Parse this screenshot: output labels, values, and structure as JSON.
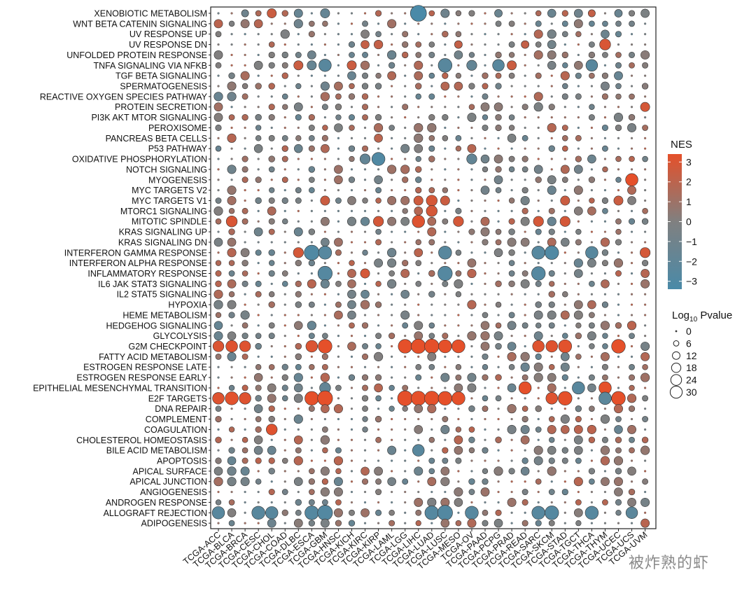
{
  "chart_data": {
    "type": "bubble-heatmap",
    "xlabel": "",
    "ylabel": "",
    "x_categories": [
      "TCGA-ACC",
      "TCGA-BLCA",
      "TCGA-BRCA",
      "TCGA-CESC",
      "TCGA-CHOL",
      "TCGA-COAD",
      "TCGA-DLBC",
      "TCGA-ESCA",
      "TCGA-GBM",
      "TCGA-HNSC",
      "TCGA-KICH",
      "TCGA-KIRC",
      "TCGA-KIRP",
      "TCGA-LAML",
      "TCGA-LGG",
      "TCGA-LIHC",
      "TCGA-LUAD",
      "TCGA-LUSC",
      "TCGA-MESO",
      "TCGA-OV",
      "TCGA-PAAD",
      "TCGA-PCPG",
      "TCGA-PRAD",
      "TCGA-READ",
      "TCGA-SARC",
      "TCGA-SKCM",
      "TCGA-STAD",
      "TCGA-TGCT",
      "TCGA-THCA",
      "TCGA-THYM",
      "TCGA-UCEC",
      "TCGA-UCS",
      "TCGA-UVM"
    ],
    "y_categories": [
      "XENOBIOTIC METABOLISM",
      "WNT BETA CATENIN SIGNALING",
      "UV RESPONSE UP",
      "UV RESPONSE DN",
      "UNFOLDED PROTEIN RESPONSE",
      "TNFA SIGNALING VIA NFKB",
      "TGF BETA SIGNALING",
      "SPERMATOGENESIS",
      "REACTIVE OXYGEN SPECIES PATHWAY",
      "PROTEIN SECRETION",
      "PI3K AKT MTOR SIGNALING",
      "PEROXISOME",
      "PANCREAS BETA CELLS",
      "P53 PATHWAY",
      "OXIDATIVE PHOSPHORYLATION",
      "NOTCH SIGNALING",
      "MYOGENESIS",
      "MYC TARGETS V2",
      "MYC TARGETS V1",
      "MTORC1 SIGNALING",
      "MITOTIC SPINDLE",
      "KRAS SIGNALING UP",
      "KRAS SIGNALING DN",
      "INTERFERON GAMMA RESPONSE",
      "INTERFERON ALPHA RESPONSE",
      "INFLAMMATORY RESPONSE",
      "IL6 JAK STAT3 SIGNALING",
      "IL2 STAT5 SIGNALING",
      "HYPOXIA",
      "HEME METABOLISM",
      "HEDGEHOG SIGNALING",
      "GLYCOLYSIS",
      "G2M CHECKPOINT",
      "FATTY ACID METABOLISM",
      "ESTROGEN RESPONSE LATE",
      "ESTROGEN RESPONSE EARLY",
      "EPITHELIAL MESENCHYMAL TRANSITION",
      "E2F TARGETS",
      "DNA REPAIR",
      "COMPLEMENT",
      "COAGULATION",
      "CHOLESTEROL HOMEOSTASIS",
      "BILE ACID METABOLISM",
      "APOPTOSIS",
      "APICAL SURFACE",
      "APICAL JUNCTION",
      "ANGIOGENESIS",
      "ANDROGEN RESPONSE",
      "ALLOGRAFT REJECTION",
      "ADIPOGENESIS"
    ],
    "color_legend": {
      "title": "NES",
      "ticks": [
        3,
        2,
        1,
        0,
        -1,
        -2,
        -3
      ],
      "range": [
        -3.4,
        3.4
      ],
      "colors": [
        "#4a8aa8",
        "#808080",
        "#e5502a"
      ]
    },
    "size_legend": {
      "title_main": "Log",
      "title_sub": "10",
      "title_rest": " Pvalue",
      "ticks": [
        0,
        6,
        12,
        18,
        24,
        30
      ]
    },
    "size_scale": {
      "max_value": 30
    },
    "colors": {
      "positive": "#e5502a",
      "neutral": "#808080",
      "negative": "#4a8aa8",
      "stroke": "#333333"
    },
    "points": [
      {
        "y": "XENOBIOTIC METABOLISM",
        "x": "TCGA-CHOL",
        "nes": 2.2,
        "p": 10
      },
      {
        "y": "XENOBIOTIC METABOLISM",
        "x": "TCGA-GBM",
        "nes": -1.5,
        "p": 10
      },
      {
        "y": "XENOBIOTIC METABOLISM",
        "x": "TCGA-LIHC",
        "nes": -3.0,
        "p": 30
      },
      {
        "y": "XENOBIOTIC METABOLISM",
        "x": "TCGA-BRCA",
        "nes": -1,
        "p": 6
      },
      {
        "y": "XENOBIOTIC METABOLISM",
        "x": "TCGA-PCPG",
        "nes": -1.2,
        "p": 7
      },
      {
        "y": "XENOBIOTIC METABOLISM",
        "x": "TCGA-SKCM",
        "nes": -1.2,
        "p": 8
      },
      {
        "y": "XENOBIOTIC METABOLISM",
        "x": "TCGA-UCEC",
        "nes": -1.3,
        "p": 7
      },
      {
        "y": "XENOBIOTIC METABOLISM",
        "x": "TCGA-THCA",
        "nes": 2.0,
        "p": 6
      },
      {
        "y": "UV RESPONSE DN",
        "x": "TCGA-KIRC",
        "nes": 2.0,
        "p": 8
      },
      {
        "y": "UV RESPONSE DN",
        "x": "TCGA-KIRP",
        "nes": 2.0,
        "p": 9
      },
      {
        "y": "UV RESPONSE DN",
        "x": "TCGA-THYM",
        "nes": 2.6,
        "p": 14
      },
      {
        "y": "UV RESPONSE DN",
        "x": "TCGA-READ",
        "nes": 2.0,
        "p": 7
      },
      {
        "y": "UV RESPONSE DN",
        "x": "TCGA-MESO",
        "nes": 2.0,
        "p": 7
      },
      {
        "y": "TNFA SIGNALING VIA NFKB",
        "x": "TCGA-GBM",
        "nes": -2.2,
        "p": 18
      },
      {
        "y": "TNFA SIGNALING VIA NFKB",
        "x": "TCGA-LUSC",
        "nes": -2.2,
        "p": 22
      },
      {
        "y": "TNFA SIGNALING VIA NFKB",
        "x": "TCGA-PCPG",
        "nes": -2.2,
        "p": 16
      },
      {
        "y": "TNFA SIGNALING VIA NFKB",
        "x": "TCGA-THCA",
        "nes": -2.2,
        "p": 16
      },
      {
        "y": "TNFA SIGNALING VIA NFKB",
        "x": "TCGA-DLBC",
        "nes": 2.2,
        "p": 10
      },
      {
        "y": "TNFA SIGNALING VIA NFKB",
        "x": "TCGA-KICH",
        "nes": 2.2,
        "p": 10
      },
      {
        "y": "TNFA SIGNALING VIA NFKB",
        "x": "TCGA-PRAD",
        "nes": 2.2,
        "p": 10
      },
      {
        "y": "TNFA SIGNALING VIA NFKB",
        "x": "TCGA-ESCA",
        "nes": -1.4,
        "p": 10
      },
      {
        "y": "TNFA SIGNALING VIA NFKB",
        "x": "TCGA-OV",
        "nes": -1.6,
        "p": 12
      },
      {
        "y": "PROTEIN SECRETION",
        "x": "TCGA-UVM",
        "nes": 2.5,
        "p": 10
      },
      {
        "y": "OXIDATIVE PHOSPHORYLATION",
        "x": "TCGA-KIRP",
        "nes": -2.6,
        "p": 20
      },
      {
        "y": "OXIDATIVE PHOSPHORYLATION",
        "x": "TCGA-KIRC",
        "nes": -1.6,
        "p": 12
      },
      {
        "y": "OXIDATIVE PHOSPHORYLATION",
        "x": "TCGA-OV",
        "nes": -1.6,
        "p": 12
      },
      {
        "y": "MYOGENESIS",
        "x": "TCGA-UCS",
        "nes": 3.0,
        "p": 18
      },
      {
        "y": "MYC TARGETS V1",
        "x": "TCGA-LUAD",
        "nes": 2.5,
        "p": 14
      },
      {
        "y": "MYC TARGETS V1",
        "x": "TCGA-LIHC",
        "nes": 2.3,
        "p": 10
      },
      {
        "y": "MYC TARGETS V1",
        "x": "TCGA-GBM",
        "nes": 2.2,
        "p": 10
      },
      {
        "y": "MYC TARGETS V1",
        "x": "TCGA-LUSC",
        "nes": 2.2,
        "p": 10
      },
      {
        "y": "MYC TARGETS V1",
        "x": "TCGA-STAD",
        "nes": 2.2,
        "p": 10
      },
      {
        "y": "MYC TARGETS V1",
        "x": "TCGA-UCEC",
        "nes": 2.2,
        "p": 10
      },
      {
        "y": "MTORC1 SIGNALING",
        "x": "TCGA-LUAD",
        "nes": 2.5,
        "p": 14
      },
      {
        "y": "MITOTIC SPINDLE",
        "x": "TCGA-BLCA",
        "nes": 2.6,
        "p": 14
      },
      {
        "y": "MITOTIC SPINDLE",
        "x": "TCGA-LIHC",
        "nes": 2.8,
        "p": 18
      },
      {
        "y": "MITOTIC SPINDLE",
        "x": "TCGA-KIRP",
        "nes": 2.5,
        "p": 12
      },
      {
        "y": "MITOTIC SPINDLE",
        "x": "TCGA-MESO",
        "nes": 2.5,
        "p": 12
      },
      {
        "y": "MITOTIC SPINDLE",
        "x": "TCGA-STAD",
        "nes": 2.5,
        "p": 12
      },
      {
        "y": "MITOTIC SPINDLE",
        "x": "TCGA-SARC",
        "nes": 2.5,
        "p": 12
      },
      {
        "y": "INTERFERON GAMMA RESPONSE",
        "x": "TCGA-ESCA",
        "nes": -2.6,
        "p": 26
      },
      {
        "y": "INTERFERON GAMMA RESPONSE",
        "x": "TCGA-GBM",
        "nes": -2.3,
        "p": 20
      },
      {
        "y": "INTERFERON GAMMA RESPONSE",
        "x": "TCGA-SARC",
        "nes": -2.3,
        "p": 20
      },
      {
        "y": "INTERFERON GAMMA RESPONSE",
        "x": "TCGA-SKCM",
        "nes": -2.6,
        "p": 22
      },
      {
        "y": "INTERFERON GAMMA RESPONSE",
        "x": "TCGA-LUSC",
        "nes": -2.2,
        "p": 20
      },
      {
        "y": "INTERFERON GAMMA RESPONSE",
        "x": "TCGA-THCA",
        "nes": -2.2,
        "p": 18
      },
      {
        "y": "INTERFERON GAMMA RESPONSE",
        "x": "TCGA-DLBC",
        "nes": 2.5,
        "p": 12
      },
      {
        "y": "INTERFERON GAMMA RESPONSE",
        "x": "TCGA-UVM",
        "nes": 2.5,
        "p": 12
      },
      {
        "y": "INFLAMMATORY RESPONSE",
        "x": "TCGA-GBM",
        "nes": -2.4,
        "p": 24
      },
      {
        "y": "INFLAMMATORY RESPONSE",
        "x": "TCGA-LUSC",
        "nes": -2.4,
        "p": 24
      },
      {
        "y": "INFLAMMATORY RESPONSE",
        "x": "TCGA-SARC",
        "nes": -2.4,
        "p": 22
      },
      {
        "y": "INFLAMMATORY RESPONSE",
        "x": "TCGA-KIRC",
        "nes": 2.5,
        "p": 10
      },
      {
        "y": "G2M CHECKPOINT",
        "x": "TCGA-ACC",
        "nes": 2.7,
        "p": 14
      },
      {
        "y": "G2M CHECKPOINT",
        "x": "TCGA-BLCA",
        "nes": 2.8,
        "p": 16
      },
      {
        "y": "G2M CHECKPOINT",
        "x": "TCGA-BRCA",
        "nes": 2.8,
        "p": 14
      },
      {
        "y": "G2M CHECKPOINT",
        "x": "TCGA-ESCA",
        "nes": 2.7,
        "p": 16
      },
      {
        "y": "G2M CHECKPOINT",
        "x": "TCGA-GBM",
        "nes": 3.0,
        "p": 22
      },
      {
        "y": "G2M CHECKPOINT",
        "x": "TCGA-LGG",
        "nes": 3.0,
        "p": 22
      },
      {
        "y": "G2M CHECKPOINT",
        "x": "TCGA-LIHC",
        "nes": 3.0,
        "p": 24
      },
      {
        "y": "G2M CHECKPOINT",
        "x": "TCGA-LUAD",
        "nes": 3.0,
        "p": 24
      },
      {
        "y": "G2M CHECKPOINT",
        "x": "TCGA-LUSC",
        "nes": 3.0,
        "p": 20
      },
      {
        "y": "G2M CHECKPOINT",
        "x": "TCGA-MESO",
        "nes": 3.0,
        "p": 20
      },
      {
        "y": "G2M CHECKPOINT",
        "x": "TCGA-SARC",
        "nes": 2.8,
        "p": 16
      },
      {
        "y": "G2M CHECKPOINT",
        "x": "TCGA-SKCM",
        "nes": 2.8,
        "p": 16
      },
      {
        "y": "G2M CHECKPOINT",
        "x": "TCGA-STAD",
        "nes": 2.9,
        "p": 20
      },
      {
        "y": "G2M CHECKPOINT",
        "x": "TCGA-UCEC",
        "nes": 3.0,
        "p": 22
      },
      {
        "y": "EPITHELIAL MESENCHYMAL TRANSITION",
        "x": "TCGA-READ",
        "nes": 3.0,
        "p": 18
      },
      {
        "y": "EPITHELIAL MESENCHYMAL TRANSITION",
        "x": "TCGA-THYM",
        "nes": 3.0,
        "p": 18
      },
      {
        "y": "EPITHELIAL MESENCHYMAL TRANSITION",
        "x": "TCGA-TGCT",
        "nes": -2.2,
        "p": 18
      },
      {
        "y": "EPITHELIAL MESENCHYMAL TRANSITION",
        "x": "TCGA-GBM",
        "nes": -1.6,
        "p": 14
      },
      {
        "y": "E2F TARGETS",
        "x": "TCGA-ACC",
        "nes": 2.8,
        "p": 16
      },
      {
        "y": "E2F TARGETS",
        "x": "TCGA-BLCA",
        "nes": 2.9,
        "p": 20
      },
      {
        "y": "E2F TARGETS",
        "x": "TCGA-BRCA",
        "nes": 2.8,
        "p": 16
      },
      {
        "y": "E2F TARGETS",
        "x": "TCGA-ESCA",
        "nes": 3.0,
        "p": 22
      },
      {
        "y": "E2F TARGETS",
        "x": "TCGA-GBM",
        "nes": 3.0,
        "p": 26
      },
      {
        "y": "E2F TARGETS",
        "x": "TCGA-LGG",
        "nes": 3.0,
        "p": 26
      },
      {
        "y": "E2F TARGETS",
        "x": "TCGA-LIHC",
        "nes": 3.0,
        "p": 24
      },
      {
        "y": "E2F TARGETS",
        "x": "TCGA-LUAD",
        "nes": 3.0,
        "p": 24
      },
      {
        "y": "E2F TARGETS",
        "x": "TCGA-LUSC",
        "nes": 3.0,
        "p": 22
      },
      {
        "y": "E2F TARGETS",
        "x": "TCGA-MESO",
        "nes": 3.0,
        "p": 20
      },
      {
        "y": "E2F TARGETS",
        "x": "TCGA-SKCM",
        "nes": 2.8,
        "p": 16
      },
      {
        "y": "E2F TARGETS",
        "x": "TCGA-STAD",
        "nes": 3.0,
        "p": 22
      },
      {
        "y": "E2F TARGETS",
        "x": "TCGA-THYM",
        "nes": -2.0,
        "p": 18
      },
      {
        "y": "E2F TARGETS",
        "x": "TCGA-UCEC",
        "nes": 3.0,
        "p": 22
      },
      {
        "y": "COAGULATION",
        "x": "TCGA-CHOL",
        "nes": 2.8,
        "p": 14
      },
      {
        "y": "BILE ACID METABOLISM",
        "x": "TCGA-LIHC",
        "nes": -2.2,
        "p": 16
      },
      {
        "y": "ALLOGRAFT REJECTION",
        "x": "TCGA-ACC",
        "nes": -2.2,
        "p": 18
      },
      {
        "y": "ALLOGRAFT REJECTION",
        "x": "TCGA-CESC",
        "nes": -2.2,
        "p": 20
      },
      {
        "y": "ALLOGRAFT REJECTION",
        "x": "TCGA-CHOL",
        "nes": -2.2,
        "p": 18
      },
      {
        "y": "ALLOGRAFT REJECTION",
        "x": "TCGA-ESCA",
        "nes": -2.4,
        "p": 22
      },
      {
        "y": "ALLOGRAFT REJECTION",
        "x": "TCGA-GBM",
        "nes": -2.5,
        "p": 26
      },
      {
        "y": "ALLOGRAFT REJECTION",
        "x": "TCGA-LUAD",
        "nes": -2.4,
        "p": 22
      },
      {
        "y": "ALLOGRAFT REJECTION",
        "x": "TCGA-LUSC",
        "nes": -2.5,
        "p": 26
      },
      {
        "y": "ALLOGRAFT REJECTION",
        "x": "TCGA-OV",
        "nes": -2.3,
        "p": 20
      },
      {
        "y": "ALLOGRAFT REJECTION",
        "x": "TCGA-SARC",
        "nes": -2.3,
        "p": 20
      },
      {
        "y": "ALLOGRAFT REJECTION",
        "x": "TCGA-SKCM",
        "nes": -2.4,
        "p": 22
      },
      {
        "y": "ALLOGRAFT REJECTION",
        "x": "TCGA-THCA",
        "nes": -2.3,
        "p": 20
      },
      {
        "y": "ALLOGRAFT REJECTION",
        "x": "TCGA-UCS",
        "nes": -2.0,
        "p": 16
      }
    ],
    "background_default": {
      "note_values": "unlisted cells: small dots with NES between -1.5 and 2"
    }
  },
  "watermark": "被炸熟的虾"
}
